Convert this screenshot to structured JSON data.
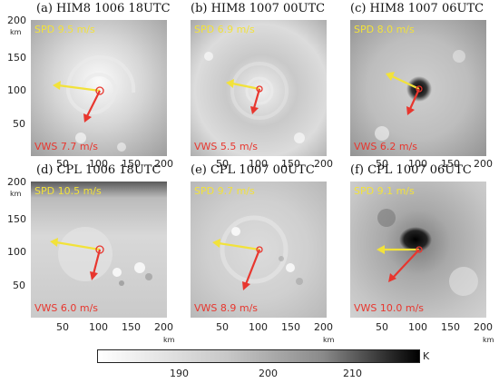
{
  "panels": [
    {
      "title": "(a) HIM8 1006 18UTC",
      "spd": "SPD 9.5 m/s",
      "vws": "VWS 7.7 m/s"
    },
    {
      "title": "(b) HIM8 1007 00UTC",
      "spd": "SPD 6.9 m/s",
      "vws": "VWS 5.5 m/s"
    },
    {
      "title": "(c) HIM8 1007 06UTC",
      "spd": "SPD 8.0 m/s",
      "vws": "VWS 6.2 m/s"
    },
    {
      "title": "(d) CPL 1006 18UTC",
      "spd": "SPD 10.5 m/s",
      "vws": "VWS 6.0 m/s"
    },
    {
      "title": "(e) CPL 1007 00UTC",
      "spd": "SPD 9.7 m/s",
      "vws": "VWS 8.9 m/s"
    },
    {
      "title": "(f) CPL 1007 06UTC",
      "spd": "SPD 9.1 m/s",
      "vws": "VWS 10.0 m/s"
    }
  ],
  "axes": {
    "y_ticks": [
      "200",
      "150",
      "100",
      "50"
    ],
    "x_ticks": [
      "50",
      "100",
      "150",
      "200"
    ],
    "unit": "km"
  },
  "colorbar": {
    "labels": [
      "190",
      "200",
      "210"
    ],
    "unit": "K"
  },
  "colors": {
    "spd_arrow": "#f2e23a",
    "vws_arrow": "#e8362e",
    "center_marker": "#e8362e"
  }
}
